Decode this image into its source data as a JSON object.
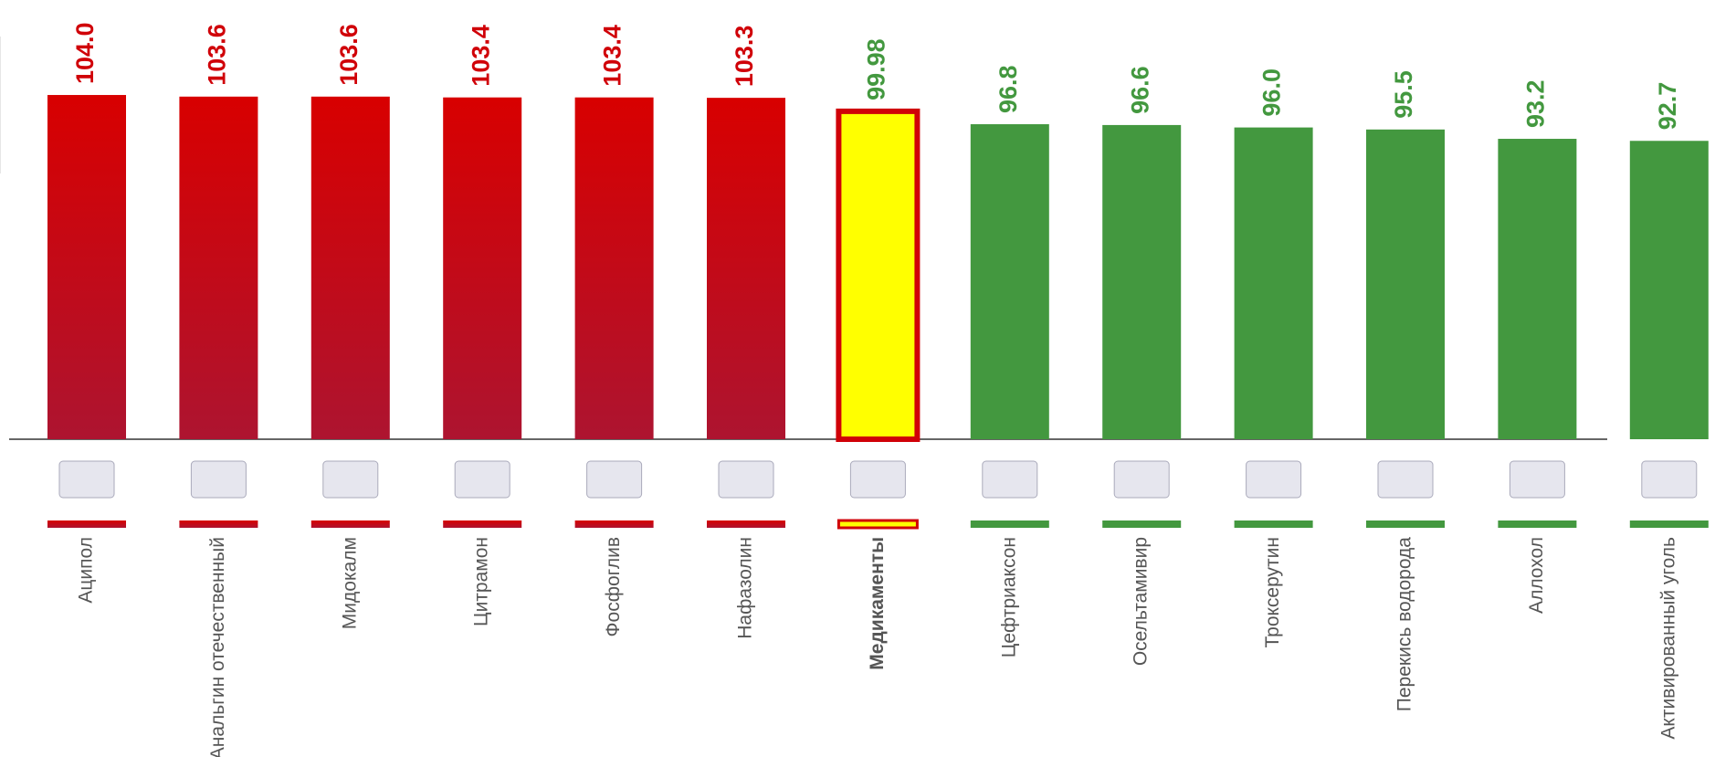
{
  "chart_data": {
    "type": "bar",
    "categories": [
      "Аципол",
      "Анальгин отечественный",
      "Мидокалм",
      "Цитрамон",
      "Фосфоглив",
      "Нафазолин",
      "Медикаменты",
      "Цефтриаксон",
      "Осельтамивир",
      "Троксерутин",
      "Перекись водорода",
      "Аллохол",
      "Активированный уголь"
    ],
    "values": [
      104.0,
      103.6,
      103.6,
      103.4,
      103.4,
      103.3,
      99.98,
      96.8,
      96.6,
      96.0,
      95.5,
      93.2,
      92.7
    ],
    "value_labels": [
      "104.0",
      "103.6",
      "103.6",
      "103.4",
      "103.4",
      "103.3",
      "99.98",
      "96.8",
      "96.6",
      "96.0",
      "95.5",
      "93.2",
      "92.7"
    ],
    "colors": [
      "#d00008",
      "#d00008",
      "#d00008",
      "#d00008",
      "#d00008",
      "#d00008",
      "#ffff00",
      "#43983f",
      "#43983f",
      "#43983f",
      "#43983f",
      "#43983f",
      "#43983f"
    ],
    "label_colors": [
      "#d00008",
      "#d00008",
      "#d00008",
      "#d00008",
      "#d00008",
      "#d00008",
      "#43983f",
      "#43983f",
      "#43983f",
      "#43983f",
      "#43983f",
      "#43983f",
      "#43983f"
    ],
    "highlight": 6,
    "ylim": [
      19.2,
      127.4
    ]
  }
}
